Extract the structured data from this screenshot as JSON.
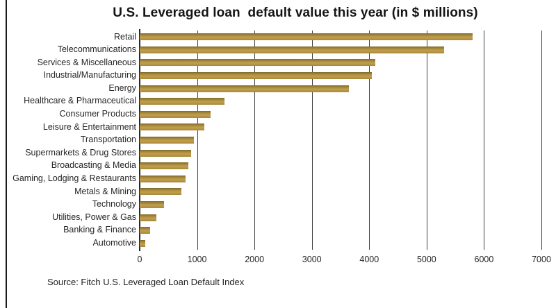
{
  "title": "U.S. Leveraged loan  default value this year (in $ millions)",
  "source": "Source: Fitch U.S. Leveraged Loan Default Index",
  "colors": {
    "bar_gold": "#b5924a",
    "bar_gold_dark": "#7f6b2d",
    "bar_gold_light": "#c29f4e",
    "axis_line": "#262626",
    "gridline": "#3f3f3f",
    "frame_border": "#1a1a1a",
    "background": "#ffffff"
  },
  "chart_data": {
    "type": "bar",
    "orientation": "horizontal",
    "title": "U.S. Leveraged loan  default value this year (in $ millions)",
    "categories": [
      "Retail",
      "Telecommunications",
      "Services & Miscellaneous",
      "Industrial/Manufacturing",
      "Energy",
      "Healthcare & Pharmaceutical",
      "Consumer Products",
      "Leisure & Entertainment",
      "Transportation",
      "Supermarkets & Drug Stores",
      "Broadcasting & Media",
      "Gaming, Lodging & Restaurants",
      "Metals & Mining",
      "Technology",
      "Utilities, Power & Gas",
      "Banking & Finance",
      "Automotive"
    ],
    "values": [
      5800,
      5300,
      4100,
      4050,
      3650,
      1475,
      1230,
      1130,
      940,
      900,
      850,
      800,
      730,
      425,
      290,
      185,
      100
    ],
    "xlabel": "",
    "ylabel": "",
    "xlim": [
      0,
      7000
    ],
    "xticks": [
      0,
      1000,
      2000,
      3000,
      4000,
      5000,
      6000,
      7000
    ],
    "grid": true,
    "legend": false,
    "source": "Source: Fitch U.S. Leveraged Loan Default Index"
  }
}
